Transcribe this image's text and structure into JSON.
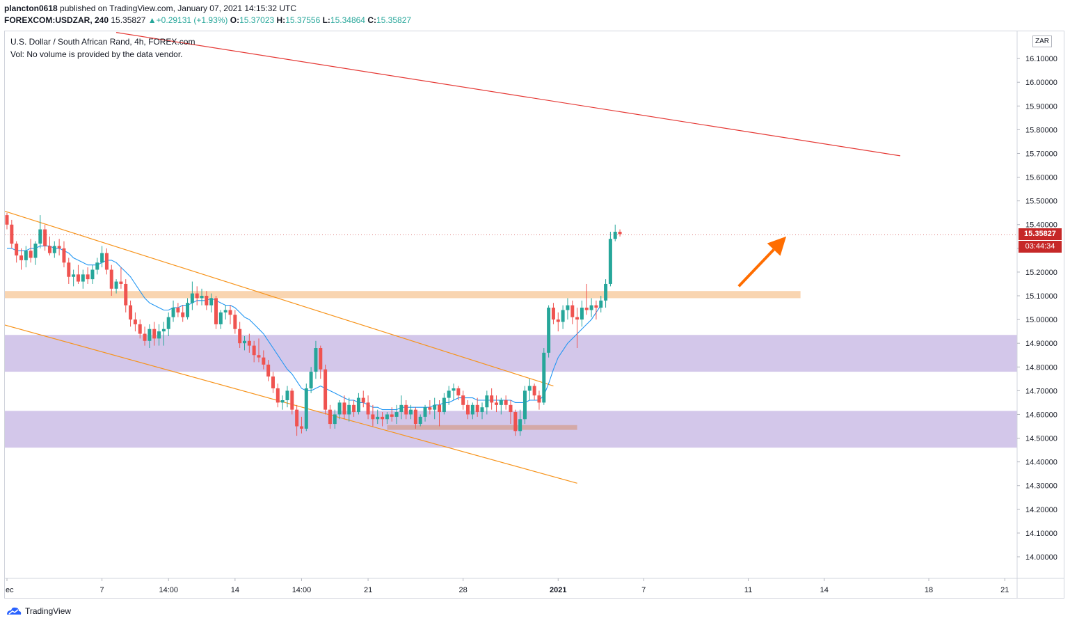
{
  "header": {
    "author": "plancton0618",
    "published_text": "published on TradingView.com, January 07, 2021 14:15:32 UTC",
    "symbol": "FOREXCOM:USDZAR, 240",
    "last": "15.35827",
    "change_arrow": "▲",
    "change": "+0.29131 (+1.93%)",
    "o_label": "O:",
    "o_val": "15.37023",
    "h_label": "H:",
    "h_val": "15.37556",
    "l_label": "L:",
    "l_val": "15.34864",
    "c_label": "C:",
    "c_val": "15.35827"
  },
  "legend": {
    "title": "U.S. Dollar / South African Rand, 4h, FOREX.com",
    "volume_note": "Vol: No volume is provided by the data vendor."
  },
  "scale": {
    "currency": "ZAR",
    "price_label": "15.35827",
    "countdown": "03:44:34"
  },
  "footer": {
    "brand": "TradingView"
  },
  "colors": {
    "up": "#26a69a",
    "down": "#ef5350",
    "ma": "#2196f3",
    "channel": "#f7931a",
    "resistance": "#e53935",
    "zone": "#d1c4e9",
    "level": "#f8d0a8",
    "arrow": "#ff6d00",
    "price_tag": "#c62828"
  },
  "chart_data": {
    "type": "candlestick",
    "symbol": "FOREXCOM:USDZAR",
    "timeframe": "4h",
    "ylim": [
      13.92,
      16.2
    ],
    "y_ticks": [
      14.0,
      14.1,
      14.2,
      14.3,
      14.4,
      14.5,
      14.6,
      14.7,
      14.8,
      14.9,
      15.0,
      15.1,
      15.2,
      15.3,
      15.4,
      15.5,
      15.6,
      15.7,
      15.8,
      15.9,
      16.0,
      16.1
    ],
    "x_ticks": [
      "ec",
      "7",
      "14:00",
      "14",
      "14:00",
      "21",
      "28",
      "2021",
      "7",
      "11",
      "14",
      "18",
      "21"
    ],
    "x_tick_bars": [
      0,
      20,
      34,
      48,
      62,
      76,
      96,
      116,
      134,
      156,
      172,
      194,
      210
    ],
    "last_price": 15.35827,
    "series": [
      {
        "type": "ohlc",
        "ohlc": [
          [
            15.44,
            15.45,
            15.38,
            15.4
          ],
          [
            15.4,
            15.42,
            15.3,
            15.32
          ],
          [
            15.32,
            15.33,
            15.24,
            15.27
          ],
          [
            15.27,
            15.3,
            15.21,
            15.25
          ],
          [
            15.25,
            15.31,
            15.22,
            15.29
          ],
          [
            15.29,
            15.34,
            15.24,
            15.26
          ],
          [
            15.26,
            15.33,
            15.23,
            15.32
          ],
          [
            15.32,
            15.44,
            15.3,
            15.38
          ],
          [
            15.38,
            15.4,
            15.29,
            15.31
          ],
          [
            15.31,
            15.35,
            15.27,
            15.28
          ],
          [
            15.28,
            15.33,
            15.26,
            15.31
          ],
          [
            15.31,
            15.34,
            15.27,
            15.3
          ],
          [
            15.3,
            15.33,
            15.22,
            15.24
          ],
          [
            15.24,
            15.26,
            15.15,
            15.18
          ],
          [
            15.18,
            15.21,
            15.14,
            15.19
          ],
          [
            15.19,
            15.23,
            15.15,
            15.16
          ],
          [
            15.16,
            15.21,
            15.13,
            15.19
          ],
          [
            15.19,
            15.22,
            15.15,
            15.17
          ],
          [
            15.17,
            15.23,
            15.15,
            15.21
          ],
          [
            15.21,
            15.26,
            15.19,
            15.24
          ],
          [
            15.24,
            15.31,
            15.22,
            15.28
          ],
          [
            15.28,
            15.3,
            15.19,
            15.21
          ],
          [
            15.21,
            15.23,
            15.1,
            15.13
          ],
          [
            15.13,
            15.17,
            15.11,
            15.16
          ],
          [
            15.16,
            15.22,
            15.13,
            15.15
          ],
          [
            15.15,
            15.17,
            15.03,
            15.06
          ],
          [
            15.06,
            15.08,
            14.97,
            15.0
          ],
          [
            15.0,
            15.03,
            14.95,
            14.98
          ],
          [
            14.98,
            15.0,
            14.92,
            14.94
          ],
          [
            14.94,
            14.97,
            14.89,
            14.91
          ],
          [
            14.91,
            14.98,
            14.88,
            14.96
          ],
          [
            14.96,
            14.99,
            14.89,
            14.92
          ],
          [
            14.92,
            14.98,
            14.89,
            14.95
          ],
          [
            14.95,
            14.99,
            14.89,
            14.96
          ],
          [
            14.96,
            15.03,
            14.93,
            15.01
          ],
          [
            15.01,
            15.08,
            14.99,
            15.05
          ],
          [
            15.05,
            15.07,
            15.01,
            15.03
          ],
          [
            15.03,
            15.06,
            14.99,
            15.01
          ],
          [
            15.01,
            15.09,
            15.0,
            15.07
          ],
          [
            15.07,
            15.16,
            15.04,
            15.11
          ],
          [
            15.11,
            15.14,
            15.06,
            15.09
          ],
          [
            15.09,
            15.13,
            15.06,
            15.1
          ],
          [
            15.1,
            15.12,
            15.04,
            15.06
          ],
          [
            15.06,
            15.11,
            15.03,
            15.09
          ],
          [
            15.09,
            15.1,
            14.96,
            14.98
          ],
          [
            14.98,
            15.04,
            14.96,
            15.03
          ],
          [
            15.03,
            15.06,
            15.0,
            15.04
          ],
          [
            15.04,
            15.06,
            14.98,
            15.02
          ],
          [
            15.02,
            15.04,
            14.94,
            14.96
          ],
          [
            14.96,
            14.99,
            14.88,
            14.9
          ],
          [
            14.9,
            14.93,
            14.87,
            14.91
          ],
          [
            14.91,
            14.94,
            14.86,
            14.89
          ],
          [
            14.89,
            14.91,
            14.82,
            14.85
          ],
          [
            14.85,
            14.92,
            14.82,
            14.84
          ],
          [
            14.84,
            14.87,
            14.79,
            14.81
          ],
          [
            14.81,
            14.83,
            14.74,
            14.76
          ],
          [
            14.76,
            14.78,
            14.69,
            14.71
          ],
          [
            14.71,
            14.73,
            14.63,
            14.65
          ],
          [
            14.65,
            14.68,
            14.62,
            14.66
          ],
          [
            14.66,
            14.72,
            14.63,
            14.7
          ],
          [
            14.7,
            14.71,
            14.6,
            14.62
          ],
          [
            14.62,
            14.64,
            14.51,
            14.55
          ],
          [
            14.55,
            14.59,
            14.52,
            14.54
          ],
          [
            14.54,
            14.73,
            14.53,
            14.71
          ],
          [
            14.71,
            14.8,
            14.69,
            14.78
          ],
          [
            14.78,
            14.91,
            14.75,
            14.88
          ],
          [
            14.88,
            14.89,
            14.75,
            14.79
          ],
          [
            14.79,
            14.81,
            14.6,
            14.62
          ],
          [
            14.62,
            14.64,
            14.54,
            14.56
          ],
          [
            14.56,
            14.62,
            14.54,
            14.6
          ],
          [
            14.6,
            14.66,
            14.58,
            14.65
          ],
          [
            14.65,
            14.68,
            14.58,
            14.6
          ],
          [
            14.6,
            14.67,
            14.57,
            14.64
          ],
          [
            14.64,
            14.66,
            14.59,
            14.61
          ],
          [
            14.61,
            14.69,
            14.6,
            14.67
          ],
          [
            14.67,
            14.7,
            14.63,
            14.65
          ],
          [
            14.65,
            14.68,
            14.58,
            14.6
          ],
          [
            14.6,
            14.64,
            14.55,
            14.58
          ],
          [
            14.58,
            14.62,
            14.56,
            14.59
          ],
          [
            14.59,
            14.61,
            14.55,
            14.58
          ],
          [
            14.58,
            14.61,
            14.56,
            14.6
          ],
          [
            14.6,
            14.63,
            14.57,
            14.59
          ],
          [
            14.59,
            14.64,
            14.56,
            14.61
          ],
          [
            14.61,
            14.68,
            14.58,
            14.64
          ],
          [
            14.64,
            14.66,
            14.58,
            14.6
          ],
          [
            14.6,
            14.64,
            14.58,
            14.62
          ],
          [
            14.62,
            14.63,
            14.54,
            14.56
          ],
          [
            14.56,
            14.6,
            14.55,
            14.59
          ],
          [
            14.59,
            14.64,
            14.57,
            14.63
          ],
          [
            14.63,
            14.66,
            14.6,
            14.62
          ],
          [
            14.62,
            14.67,
            14.58,
            14.64
          ],
          [
            14.64,
            14.66,
            14.55,
            14.61
          ],
          [
            14.61,
            14.69,
            14.6,
            14.67
          ],
          [
            14.67,
            14.72,
            14.64,
            14.7
          ],
          [
            14.7,
            14.73,
            14.66,
            14.71
          ],
          [
            14.71,
            14.72,
            14.66,
            14.68
          ],
          [
            14.68,
            14.7,
            14.62,
            14.64
          ],
          [
            14.64,
            14.66,
            14.58,
            14.6
          ],
          [
            14.6,
            14.65,
            14.58,
            14.64
          ],
          [
            14.64,
            14.67,
            14.59,
            14.61
          ],
          [
            14.61,
            14.65,
            14.58,
            14.63
          ],
          [
            14.63,
            14.7,
            14.6,
            14.68
          ],
          [
            14.68,
            14.71,
            14.62,
            14.65
          ],
          [
            14.65,
            14.68,
            14.61,
            14.64
          ],
          [
            14.64,
            14.67,
            14.6,
            14.66
          ],
          [
            14.66,
            14.68,
            14.62,
            14.64
          ],
          [
            14.64,
            14.66,
            14.56,
            14.61
          ],
          [
            14.61,
            14.62,
            14.51,
            14.53
          ],
          [
            14.53,
            14.62,
            14.51,
            14.58
          ],
          [
            14.58,
            14.72,
            14.56,
            14.7
          ],
          [
            14.7,
            14.75,
            14.66,
            14.72
          ],
          [
            14.72,
            14.73,
            14.66,
            14.68
          ],
          [
            14.68,
            14.7,
            14.62,
            14.65
          ],
          [
            14.65,
            14.88,
            14.64,
            14.86
          ],
          [
            14.86,
            15.06,
            14.84,
            15.05
          ],
          [
            15.05,
            15.07,
            14.98,
            15.0
          ],
          [
            15.0,
            15.03,
            14.95,
            14.99
          ],
          [
            14.99,
            15.06,
            14.96,
            15.04
          ],
          [
            15.04,
            15.09,
            15.0,
            15.06
          ],
          [
            15.06,
            15.08,
            14.98,
            15.01
          ],
          [
            15.01,
            15.05,
            14.88,
            15.0
          ],
          [
            15.0,
            15.08,
            14.97,
            15.05
          ],
          [
            15.05,
            15.15,
            15.02,
            15.04
          ],
          [
            15.04,
            15.09,
            15.01,
            15.06
          ],
          [
            15.06,
            15.08,
            15.0,
            15.05
          ],
          [
            15.05,
            15.1,
            15.03,
            15.08
          ],
          [
            15.08,
            15.17,
            15.05,
            15.15
          ],
          [
            15.15,
            15.37,
            15.14,
            15.34
          ],
          [
            15.34,
            15.4,
            15.33,
            15.37
          ],
          [
            15.37,
            15.38,
            15.35,
            15.36
          ]
        ]
      },
      {
        "name": "",
        "type": "moving_average",
        "values": [
          15.3,
          15.3,
          15.29,
          15.29,
          15.29,
          15.3,
          15.3,
          15.31,
          15.31,
          15.31,
          15.3,
          15.3,
          15.29,
          15.28,
          15.26,
          15.25,
          15.24,
          15.23,
          15.23,
          15.23,
          15.24,
          15.25,
          15.25,
          15.24,
          15.22,
          15.2,
          15.18,
          15.15,
          15.12,
          15.09,
          15.07,
          15.06,
          15.05,
          15.04,
          15.04,
          15.05,
          15.05,
          15.06,
          15.06,
          15.07,
          15.08,
          15.08,
          15.08,
          15.09,
          15.08,
          15.07,
          15.06,
          15.06,
          15.05,
          15.03,
          15.01,
          15.0,
          14.98,
          14.96,
          14.94,
          14.91,
          14.88,
          14.85,
          14.82,
          14.79,
          14.77,
          14.74,
          14.71,
          14.7,
          14.7,
          14.71,
          14.72,
          14.71,
          14.7,
          14.69,
          14.68,
          14.67,
          14.66,
          14.66,
          14.65,
          14.65,
          14.64,
          14.63,
          14.63,
          14.62,
          14.62,
          14.62,
          14.62,
          14.63,
          14.63,
          14.63,
          14.63,
          14.63,
          14.63,
          14.63,
          14.64,
          14.64,
          14.65,
          14.65,
          14.66,
          14.67,
          14.67,
          14.67,
          14.67,
          14.66,
          14.66,
          14.66,
          14.66,
          14.66,
          14.66,
          14.66,
          14.66,
          14.65,
          14.65,
          14.65,
          14.66,
          14.66,
          14.66,
          14.68,
          14.73,
          14.79,
          14.84,
          14.87,
          14.9,
          14.92,
          14.94,
          14.96,
          14.98,
          15.0,
          15.03,
          15.06
        ],
        "start_bar": 0
      }
    ],
    "overlays": [
      {
        "type": "trendline",
        "color": "red",
        "from": {
          "bar": 23,
          "price": 16.21
        },
        "to": {
          "bar": 188,
          "price": 15.69
        }
      },
      {
        "type": "trendline",
        "color": "orange",
        "from": {
          "bar": -1,
          "price": 15.46
        },
        "to": {
          "bar": 115,
          "price": 14.72
        }
      },
      {
        "type": "trendline",
        "color": "orange",
        "from": {
          "bar": -1,
          "price": 14.98
        },
        "to": {
          "bar": 120,
          "price": 14.31
        }
      },
      {
        "type": "zone",
        "color": "purple",
        "price_top": 14.935,
        "price_bottom": 14.78,
        "from_bar": -1,
        "to_bar": 235
      },
      {
        "type": "zone",
        "color": "purple",
        "price_top": 14.615,
        "price_bottom": 14.46,
        "from_bar": -1,
        "to_bar": 235
      },
      {
        "type": "zone",
        "color": "orange",
        "price_top": 15.12,
        "price_bottom": 15.09,
        "from_bar": -1,
        "to_bar": 167
      },
      {
        "type": "zone",
        "color": "brown",
        "price_top": 14.555,
        "price_bottom": 14.535,
        "from_bar": 80,
        "to_bar": 120
      },
      {
        "type": "arrow",
        "color": "orange",
        "from": {
          "bar": 154,
          "price": 15.14
        },
        "to": {
          "bar": 164,
          "price": 15.35
        }
      }
    ]
  }
}
